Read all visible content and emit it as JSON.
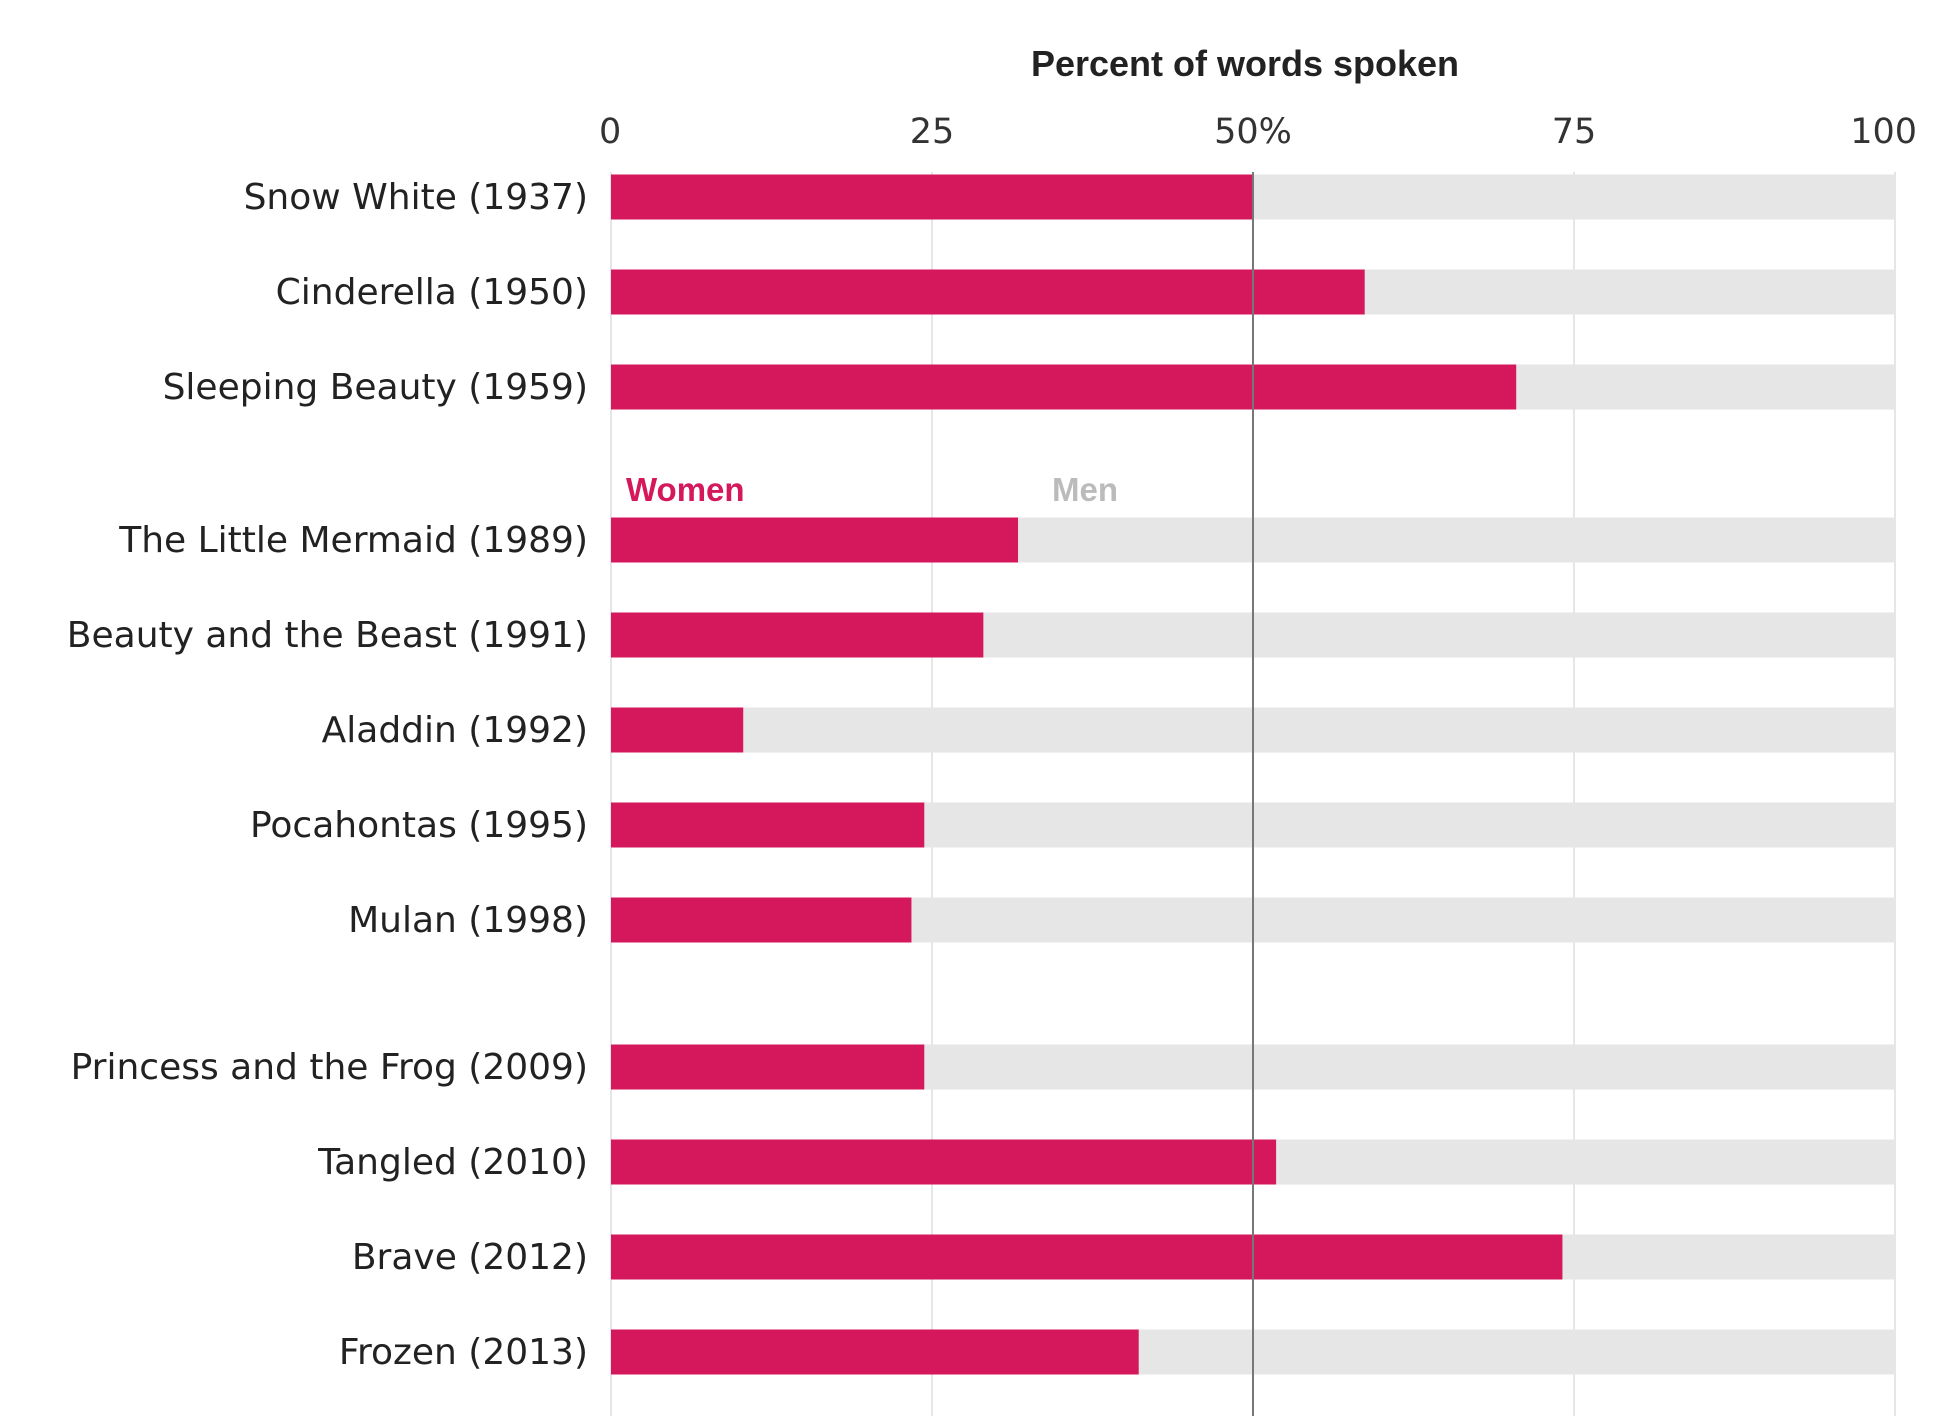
{
  "chart_data": {
    "type": "bar",
    "orientation": "horizontal",
    "stacked": true,
    "title": "",
    "xlabel": "Percent of words spoken",
    "ylabel": "",
    "xlim": [
      0,
      100
    ],
    "xticks": [
      0,
      25,
      50,
      75,
      100
    ],
    "xtick_labels": [
      "0",
      "25",
      "50%",
      "75",
      "100"
    ],
    "grid": true,
    "reference_line": 50,
    "legend_placement": "inside-top, between first and second group",
    "categories": [
      "Snow White (1937)",
      "Cinderella (1950)",
      "Sleeping Beauty (1959)",
      "The Little Mermaid (1989)",
      "Beauty and the Beast (1991)",
      "Aladdin (1992)",
      "Pocahontas (1995)",
      "Mulan (1998)",
      "Princess and the Frog (2009)",
      "Tangled (2010)",
      "Brave (2012)",
      "Frozen (2013)"
    ],
    "groups": [
      [
        0,
        1,
        2
      ],
      [
        3,
        4,
        5,
        6,
        7
      ],
      [
        8,
        9,
        10,
        11
      ]
    ],
    "series": [
      {
        "name": "Women",
        "color": "#d5175b",
        "values": [
          50,
          58.7,
          70.5,
          31.7,
          29,
          10.3,
          24.4,
          23.4,
          24.4,
          51.8,
          74.1,
          41.1
        ]
      },
      {
        "name": "Men",
        "color": "#e6e6e6",
        "values": [
          50,
          41.3,
          29.5,
          68.3,
          71,
          89.7,
          75.6,
          76.6,
          75.6,
          48.2,
          25.9,
          58.9
        ]
      }
    ]
  },
  "colors": {
    "women": "#d5175b",
    "men_bar": "#e6e6e6",
    "men_label": "#bbbbbb",
    "gridline": "#dddddd",
    "midline": "#777777"
  }
}
